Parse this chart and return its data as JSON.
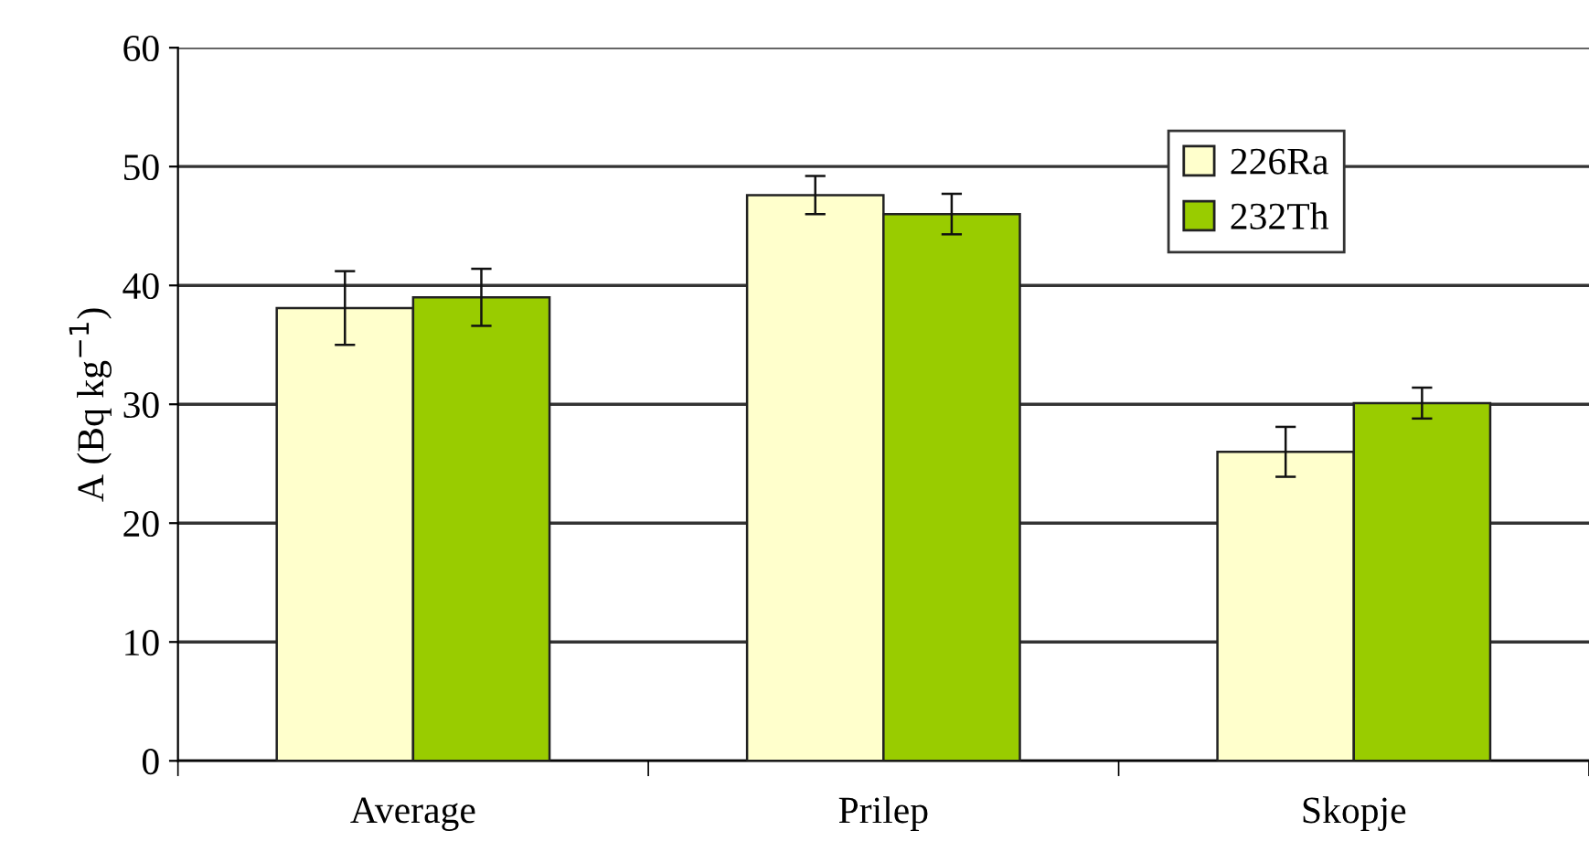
{
  "chart_data": {
    "type": "bar",
    "ylabel": "A (Bq kg$^{−1}$)",
    "categories": [
      "Average",
      "Prilep",
      "Skopje"
    ],
    "series": [
      {
        "name": "226Ra",
        "color": "#ffffcc",
        "values": [
          38.1,
          47.6,
          26.0
        ],
        "errors": [
          3.1,
          1.6,
          2.1
        ]
      },
      {
        "name": "232Th",
        "color": "#99cc00",
        "values": [
          39.0,
          46.0,
          30.1
        ],
        "errors": [
          2.4,
          1.7,
          1.3
        ]
      }
    ],
    "ylim": [
      0,
      60
    ],
    "yticks": [
      0,
      10,
      20,
      30,
      40,
      50,
      60
    ],
    "grid": "y",
    "legend": "top right"
  }
}
